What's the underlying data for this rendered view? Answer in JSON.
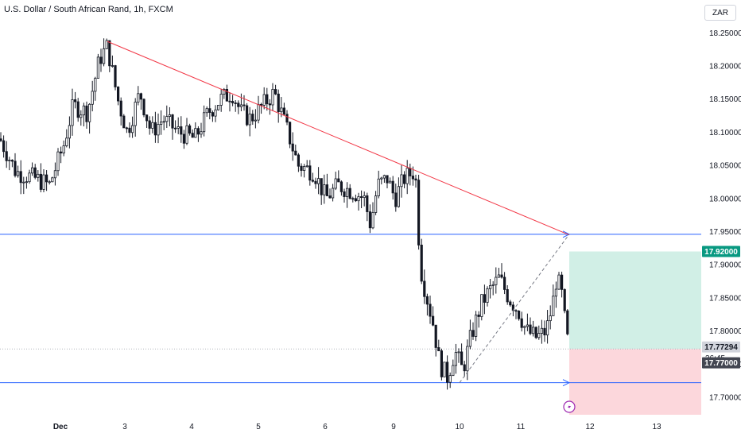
{
  "header": {
    "title": "U.S. Dollar / South African Rand, 1h, FXCM",
    "currency": "ZAR"
  },
  "chart_data": {
    "type": "candlestick",
    "y_ticks": [
      "18.25000",
      "18.20000",
      "18.15000",
      "18.10000",
      "18.05000",
      "18.00000",
      "17.95000",
      "17.90000",
      "17.85000",
      "17.80000",
      "17.75000",
      "17.70000"
    ],
    "x_ticks": [
      "Dec",
      "3",
      "4",
      "5",
      "6",
      "9",
      "10",
      "11",
      "12",
      "13"
    ],
    "ylim": [
      17.665,
      18.27
    ],
    "price_labels": {
      "target": "17.92000",
      "last": "17.77294",
      "countdown": "36:45",
      "stop": "17.77000"
    },
    "levels": {
      "support_upper": 17.946,
      "support_lower": 17.722,
      "last_price": 17.7729,
      "target": 17.92,
      "stop": 17.77
    },
    "trendline": {
      "from": 18.237,
      "to": 17.945
    },
    "projection": {
      "from": 17.722,
      "to": 17.946
    },
    "colors": {
      "candle": "#131722",
      "trendline": "#f23645",
      "levels": "#2962ff",
      "target_zone": "#d1efe6",
      "stop_zone": "#fcd7dc",
      "target_badge": "#089981",
      "last_badge": "#d1d4dc",
      "countdown_badge": "#787b86",
      "stop_badge": "#434651",
      "event_icon": "#9c27b0"
    },
    "event_icon": "lightning-icon"
  }
}
